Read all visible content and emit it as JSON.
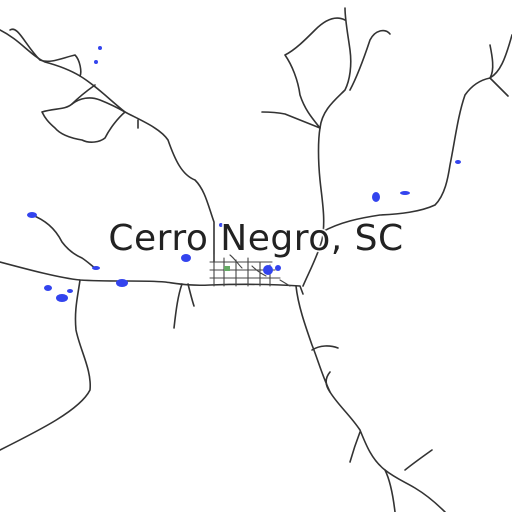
{
  "map": {
    "place_name": "Cerro Negro, SC",
    "colors": {
      "background": "#ffffff",
      "road": "#333333",
      "water": "#3344ee",
      "park": "#66aa66",
      "label": "#222222"
    }
  }
}
